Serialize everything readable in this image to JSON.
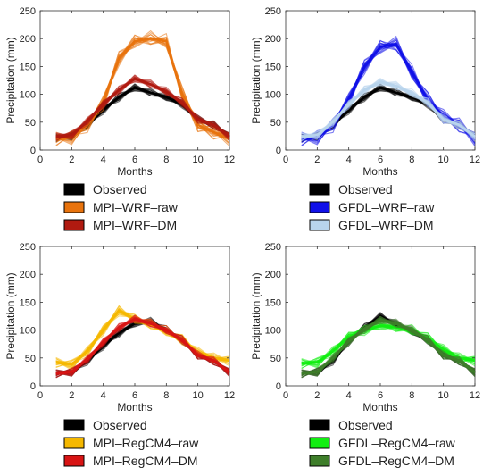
{
  "chart_data": [
    {
      "type": "line",
      "xlabel": "Months",
      "ylabel": "Precipitation (mm)",
      "xlim": [
        0,
        12
      ],
      "ylim": [
        0,
        250
      ],
      "xticks": [
        0,
        2,
        4,
        6,
        8,
        10,
        12
      ],
      "yticks": [
        0,
        50,
        100,
        150,
        200,
        250
      ],
      "grid": false,
      "legend_position": "below",
      "x": [
        1,
        2,
        3,
        4,
        5,
        6,
        7,
        8,
        9,
        10,
        11,
        12
      ],
      "series": [
        {
          "name": "Observed",
          "color": "#000000",
          "values": [
            22,
            25,
            45,
            72,
            95,
            112,
            103,
            95,
            82,
            55,
            45,
            24
          ],
          "spread": 8
        },
        {
          "name": "MPI–WRF–raw",
          "color": "#e8730d",
          "values": [
            20,
            23,
            45,
            85,
            165,
            195,
            200,
            195,
            100,
            45,
            32,
            20
          ],
          "spread": 14
        },
        {
          "name": "MPI–WRF–DM",
          "color": "#b01a10",
          "values": [
            24,
            27,
            52,
            82,
            108,
            128,
            118,
            105,
            85,
            55,
            45,
            24
          ],
          "spread": 8
        }
      ]
    },
    {
      "type": "line",
      "xlabel": "Months",
      "ylabel": "Precipitation (mm)",
      "xlim": [
        0,
        12
      ],
      "ylim": [
        0,
        250
      ],
      "xticks": [
        0,
        2,
        4,
        6,
        8,
        10,
        12
      ],
      "yticks": [
        0,
        50,
        100,
        150,
        200,
        250
      ],
      "grid": false,
      "legend_position": "below",
      "x": [
        1,
        2,
        3,
        4,
        5,
        6,
        7,
        8,
        9,
        10,
        11,
        12
      ],
      "series": [
        {
          "name": "Observed",
          "color": "#000000",
          "values": [
            22,
            25,
            45,
            72,
            95,
            112,
            103,
            95,
            82,
            55,
            45,
            24
          ],
          "spread": 8
        },
        {
          "name": "GFDL–WRF–raw",
          "color": "#1010e8",
          "values": [
            20,
            23,
            45,
            90,
            150,
            185,
            190,
            140,
            90,
            60,
            45,
            20
          ],
          "spread": 14
        },
        {
          "name": "GFDL–WRF–DM",
          "color": "#b8d4ec",
          "values": [
            24,
            27,
            50,
            82,
            108,
            122,
            115,
            102,
            85,
            55,
            45,
            24
          ],
          "spread": 8
        }
      ]
    },
    {
      "type": "line",
      "xlabel": "Months",
      "ylabel": "Precipitation (mm)",
      "xlim": [
        0,
        12
      ],
      "ylim": [
        0,
        250
      ],
      "xticks": [
        0,
        2,
        4,
        6,
        8,
        10,
        12
      ],
      "yticks": [
        0,
        50,
        100,
        150,
        200,
        250
      ],
      "grid": false,
      "legend_position": "below",
      "x": [
        1,
        2,
        3,
        4,
        5,
        6,
        7,
        8,
        9,
        10,
        11,
        12
      ],
      "series": [
        {
          "name": "Observed",
          "color": "#000000",
          "values": [
            22,
            25,
            45,
            72,
            95,
            112,
            115,
            100,
            82,
            55,
            45,
            24
          ],
          "spread": 8
        },
        {
          "name": "MPI–RegCM4–raw",
          "color": "#f5b800",
          "values": [
            42,
            38,
            62,
            100,
            135,
            120,
            110,
            98,
            82,
            60,
            50,
            45
          ],
          "spread": 10
        },
        {
          "name": "MPI–RegCM4–DM",
          "color": "#d81414",
          "values": [
            22,
            25,
            48,
            78,
            105,
            120,
            112,
            100,
            82,
            55,
            45,
            24
          ],
          "spread": 8
        }
      ]
    },
    {
      "type": "line",
      "xlabel": "Months",
      "ylabel": "Precipitation (mm)",
      "xlim": [
        0,
        12
      ],
      "ylim": [
        0,
        250
      ],
      "xticks": [
        0,
        2,
        4,
        6,
        8,
        10,
        12
      ],
      "yticks": [
        0,
        50,
        100,
        150,
        200,
        250
      ],
      "grid": false,
      "legend_position": "below",
      "x": [
        1,
        2,
        3,
        4,
        5,
        6,
        7,
        8,
        9,
        10,
        11,
        12
      ],
      "series": [
        {
          "name": "Observed",
          "color": "#000000",
          "values": [
            22,
            25,
            45,
            80,
            105,
            125,
            110,
            98,
            82,
            55,
            45,
            24
          ],
          "spread": 8
        },
        {
          "name": "GFDL–RegCM4–raw",
          "color": "#12ee12",
          "values": [
            40,
            42,
            62,
            88,
            100,
            108,
            105,
            100,
            85,
            65,
            50,
            45
          ],
          "spread": 10
        },
        {
          "name": "GFDL–RegCM4–DM",
          "color": "#3e7e2a",
          "values": [
            22,
            25,
            50,
            80,
            102,
            118,
            112,
            100,
            82,
            55,
            45,
            24
          ],
          "spread": 8
        }
      ]
    }
  ]
}
